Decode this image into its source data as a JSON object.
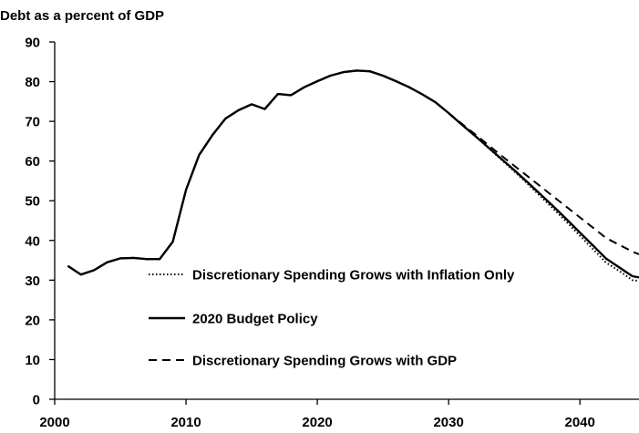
{
  "chart_data": {
    "type": "line",
    "ylabel": "Debt as a percent of GDP",
    "xlabel": "",
    "xlim": [
      2000,
      2044.5
    ],
    "ylim": [
      0,
      90
    ],
    "x_ticks": [
      2000,
      2010,
      2020,
      2030,
      2040
    ],
    "y_ticks": [
      0,
      10,
      20,
      30,
      40,
      50,
      60,
      70,
      80,
      90
    ],
    "grid": false,
    "legend_position": "lower-center",
    "series": [
      {
        "name": "Discretionary Spending Grows with Inflation Only",
        "style": "dotted",
        "color": "#000000",
        "x": [
          2001,
          2002,
          2003,
          2004,
          2005,
          2006,
          2007,
          2008,
          2009,
          2010,
          2011,
          2012,
          2013,
          2014,
          2015,
          2016,
          2017,
          2018,
          2019,
          2020,
          2021,
          2022,
          2023,
          2024,
          2025,
          2026,
          2027,
          2028,
          2029,
          2030,
          2031,
          2032,
          2033,
          2034,
          2035,
          2036,
          2037,
          2038,
          2039,
          2040,
          2041,
          2042,
          2043,
          2044,
          2044.5
        ],
        "y": [
          33.6,
          31.4,
          32.5,
          34.5,
          35.5,
          35.6,
          35.3,
          35.3,
          39.7,
          52.7,
          61.5,
          66.5,
          70.7,
          72.8,
          74.3,
          73.1,
          76.9,
          76.6,
          78.6,
          80.1,
          81.5,
          82.4,
          82.8,
          82.6,
          81.5,
          80.1,
          78.6,
          76.8,
          74.8,
          72.1,
          69.2,
          66.4,
          63.4,
          60.4,
          57.4,
          54.3,
          51.1,
          47.9,
          44.6,
          41.2,
          37.8,
          34.4,
          32.3,
          30.0,
          29.8
        ]
      },
      {
        "name": "2020 Budget Policy",
        "style": "solid",
        "color": "#000000",
        "x": [
          2001,
          2002,
          2003,
          2004,
          2005,
          2006,
          2007,
          2008,
          2009,
          2010,
          2011,
          2012,
          2013,
          2014,
          2015,
          2016,
          2017,
          2018,
          2019,
          2020,
          2021,
          2022,
          2023,
          2024,
          2025,
          2026,
          2027,
          2028,
          2029,
          2030,
          2031,
          2032,
          2033,
          2034,
          2035,
          2036,
          2037,
          2038,
          2039,
          2040,
          2041,
          2042,
          2043,
          2044,
          2044.5
        ],
        "y": [
          33.6,
          31.4,
          32.5,
          34.5,
          35.5,
          35.6,
          35.3,
          35.3,
          39.7,
          52.7,
          61.5,
          66.5,
          70.7,
          72.8,
          74.3,
          73.1,
          76.9,
          76.6,
          78.6,
          80.1,
          81.5,
          82.4,
          82.8,
          82.6,
          81.5,
          80.1,
          78.6,
          76.8,
          74.8,
          72.1,
          69.2,
          66.4,
          63.5,
          60.6,
          57.7,
          54.7,
          51.6,
          48.5,
          45.3,
          42.0,
          38.7,
          35.4,
          33.2,
          31.0,
          30.7
        ]
      },
      {
        "name": "Discretionary Spending Grows with GDP",
        "style": "dashed",
        "color": "#000000",
        "x": [
          2001,
          2002,
          2003,
          2004,
          2005,
          2006,
          2007,
          2008,
          2009,
          2010,
          2011,
          2012,
          2013,
          2014,
          2015,
          2016,
          2017,
          2018,
          2019,
          2020,
          2021,
          2022,
          2023,
          2024,
          2025,
          2026,
          2027,
          2028,
          2029,
          2030,
          2031,
          2032,
          2033,
          2034,
          2035,
          2036,
          2037,
          2038,
          2039,
          2040,
          2041,
          2042,
          2043,
          2044,
          2044.5
        ],
        "y": [
          33.6,
          31.4,
          32.5,
          34.5,
          35.5,
          35.6,
          35.3,
          35.3,
          39.7,
          52.7,
          61.5,
          66.5,
          70.7,
          72.8,
          74.3,
          73.1,
          76.9,
          76.6,
          78.6,
          80.1,
          81.5,
          82.4,
          82.8,
          82.6,
          81.5,
          80.1,
          78.6,
          76.8,
          74.8,
          72.1,
          69.4,
          66.8,
          64.1,
          61.4,
          58.8,
          56.2,
          53.6,
          51.0,
          48.4,
          45.8,
          43.2,
          40.6,
          38.9,
          37.2,
          36.5
        ]
      }
    ]
  }
}
